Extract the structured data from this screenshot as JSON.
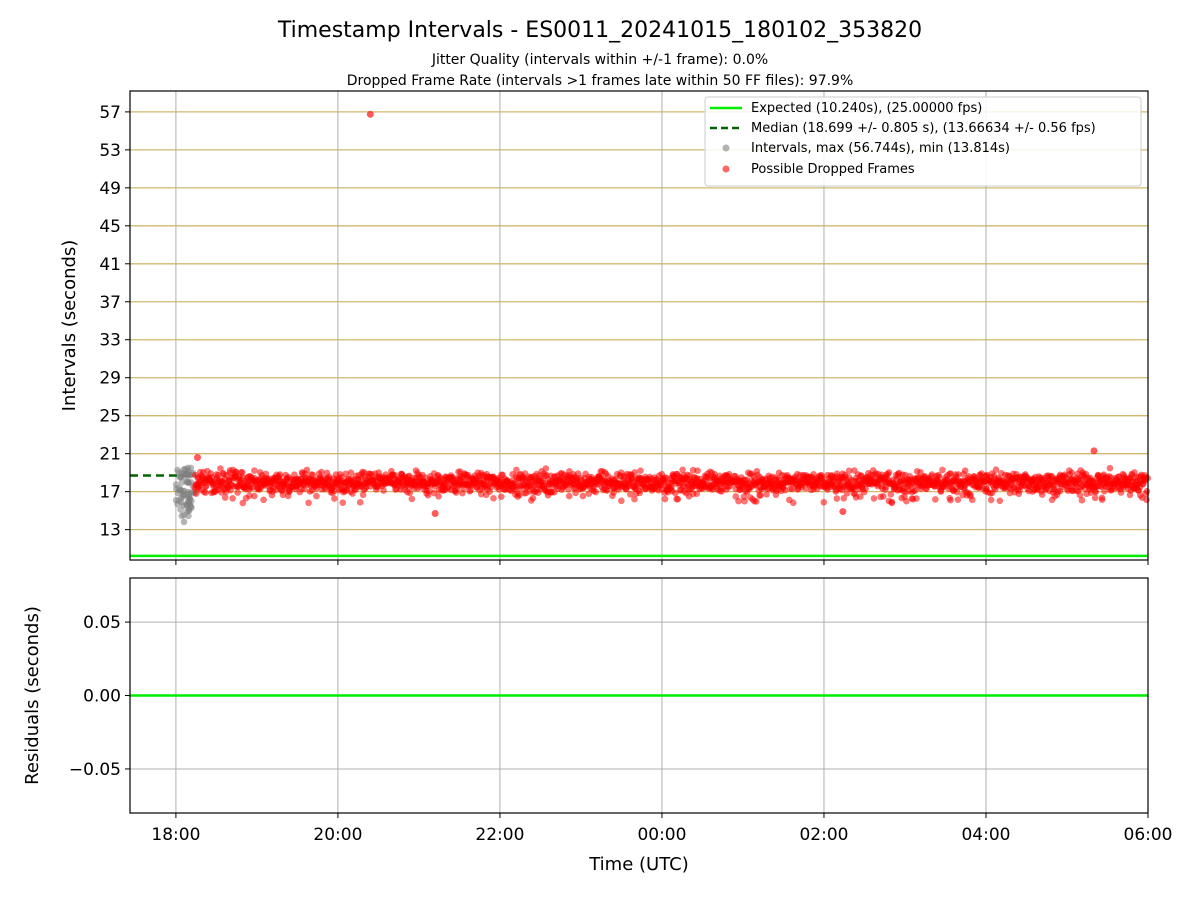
{
  "title": "Timestamp Intervals - ES0011_20241015_180102_353820",
  "subtitle_jitter": "Jitter Quality (intervals within +/-1 frame): 0.0%",
  "subtitle_dropped": "Dropped Frame Rate (intervals >1 frames late within 50 FF files): 97.9%",
  "colors": {
    "expected": "#00ee00",
    "median": "#006400",
    "intervals": "#808080",
    "dropped": "#ff0000",
    "hgrid": "#d2b96e",
    "vgrid": "#b0b0b0"
  },
  "chart_data": [
    {
      "type": "scatter",
      "panel": "top",
      "ylabel": "Intervals (seconds)",
      "ylim": [
        9.8,
        59.2
      ],
      "yticks": [
        "13",
        "17",
        "21",
        "25",
        "29",
        "33",
        "37",
        "41",
        "45",
        "49",
        "53",
        "57"
      ],
      "xlim": [
        "17:26",
        "06:00"
      ],
      "xticks": [
        "18:00",
        "20:00",
        "22:00",
        "00:00",
        "02:00",
        "04:00",
        "06:00"
      ],
      "grid": "on",
      "expected_interval": 10.24,
      "median_interval": 18.699,
      "median_line_end": "18:15",
      "legend_position": "top-right",
      "legend": [
        "Expected (10.240s), (25.00000 fps)",
        "Median (18.699 +/- 0.805 s), (13.66634 +/- 0.56 fps)",
        "Intervals, max (56.744s), min (13.814s)",
        "Possible Dropped Frames"
      ],
      "intervals_range": [
        "18:00",
        "18:14"
      ],
      "intervals_min": 13.814,
      "intervals_max": 56.744,
      "dropped_frames_range": [
        "18:14",
        "06:00"
      ],
      "dropped_frames_typical_range": [
        15.8,
        20.3
      ],
      "notable_points": [
        {
          "x": "20:24",
          "y": 56.744
        },
        {
          "x": "18:16",
          "y": 20.6
        },
        {
          "x": "05:20",
          "y": 21.3
        },
        {
          "x": "02:14",
          "y": 14.9
        },
        {
          "x": "21:12",
          "y": 14.7
        }
      ]
    },
    {
      "type": "line",
      "panel": "bottom",
      "ylabel": "Residuals (seconds)",
      "ylim": [
        -0.08,
        0.08
      ],
      "yticks": [
        "0.05",
        "0.00",
        "−0.05"
      ],
      "xlabel": "Time (UTC)",
      "xticks": [
        "18:00",
        "20:00",
        "22:00",
        "00:00",
        "02:00",
        "04:00",
        "06:00"
      ],
      "residual_value": 0.0
    }
  ]
}
